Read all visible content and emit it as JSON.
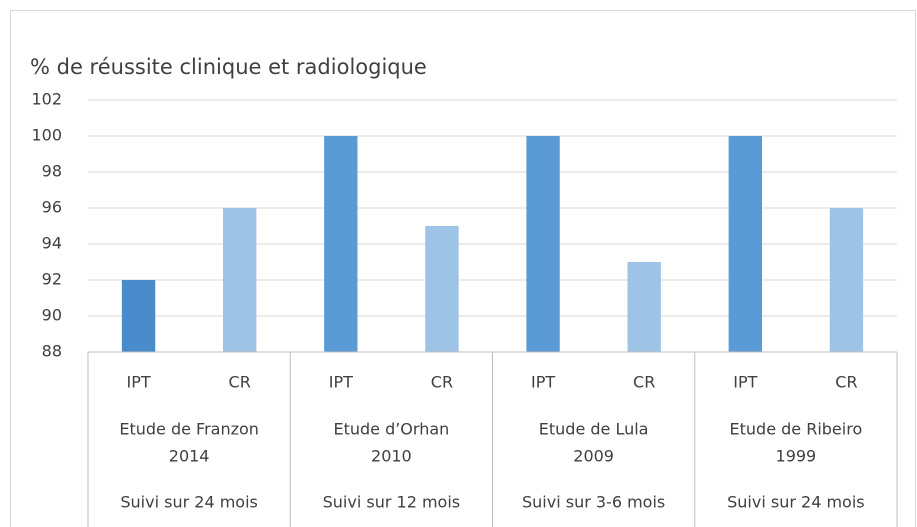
{
  "chart_data": {
    "type": "bar",
    "title": "% de réussite clinique et radiologique",
    "categories": [
      "IPT",
      "CR",
      "IPT",
      "CR",
      "IPT",
      "CR",
      "IPT",
      "CR"
    ],
    "groups": [
      {
        "lines": [
          "Etude de Franzon",
          "2014"
        ],
        "follow_up": "Suivi sur 24 mois"
      },
      {
        "lines": [
          "Etude d’Orhan",
          "2010"
        ],
        "follow_up": "Suivi sur 12 mois"
      },
      {
        "lines": [
          "Etude de Lula",
          "2009"
        ],
        "follow_up": "Suivi sur 3-6 mois"
      },
      {
        "lines": [
          "Etude de Ribeiro",
          "1999"
        ],
        "follow_up": "Suivi sur 24 mois"
      }
    ],
    "values": [
      92,
      96,
      100,
      95,
      100,
      93,
      100,
      96
    ],
    "colors": [
      "#4a8bcc",
      "#9dc3e6",
      "#5b9bd5",
      "#9dc3e6",
      "#5b9bd5",
      "#9dc3e6",
      "#5b9bd5",
      "#9dc3e6"
    ],
    "ylim": [
      88,
      102
    ],
    "yticks": [
      88,
      90,
      92,
      94,
      96,
      98,
      100,
      102
    ],
    "grid": true
  }
}
